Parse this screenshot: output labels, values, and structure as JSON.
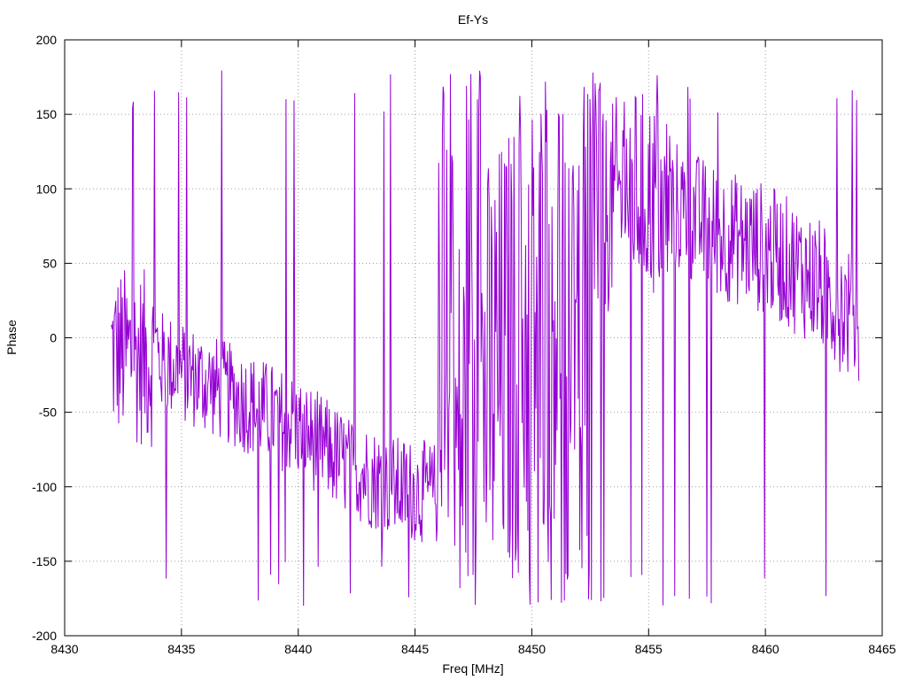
{
  "chart_data": {
    "type": "line",
    "title": "Ef-Ys",
    "xlabel": "Freq [MHz]",
    "ylabel": "Phase",
    "xlim": [
      8430,
      8465
    ],
    "ylim": [
      -200,
      200
    ],
    "xticks": [
      8430,
      8435,
      8440,
      8445,
      8450,
      8455,
      8460,
      8465
    ],
    "yticks": [
      -200,
      -150,
      -100,
      -50,
      0,
      50,
      100,
      150,
      200
    ],
    "grid": true,
    "line_color": "#9400d3",
    "series": [
      {
        "x_start": 8432.0,
        "x_end": 8464.0,
        "points": 1024,
        "approx_trend": {
          "x": [
            8432,
            8434,
            8436,
            8438,
            8440,
            8442,
            8444,
            8446,
            8448,
            8450,
            8452,
            8454,
            8456,
            8458,
            8460,
            8462,
            8464
          ],
          "y": [
            -10,
            -15,
            -30,
            -45,
            -60,
            -85,
            -100,
            -105,
            -40,
            10,
            60,
            100,
            90,
            70,
            60,
            40,
            10
          ]
        }
      }
    ]
  }
}
